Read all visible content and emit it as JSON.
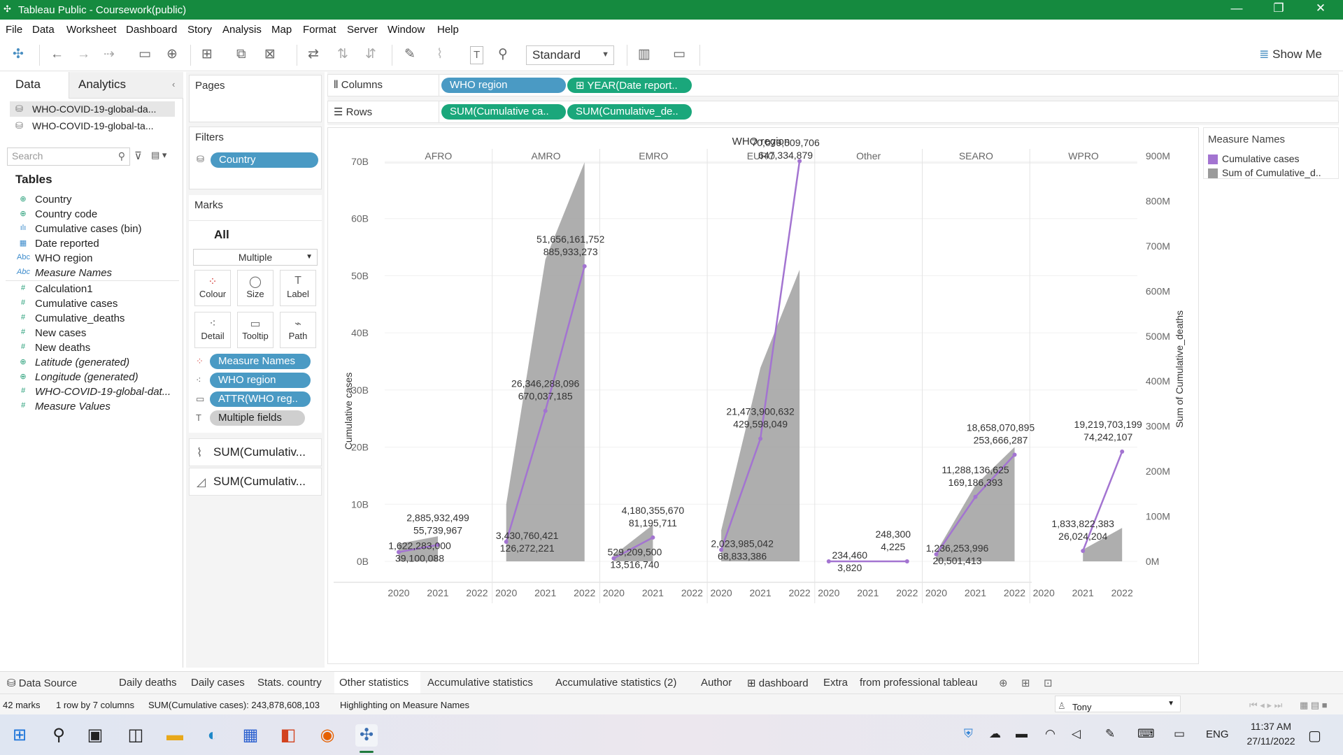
{
  "window": {
    "title": "Tableau Public - Coursework(public)",
    "min": "—",
    "max": "❐",
    "close": "✕"
  },
  "menu": [
    "File",
    "Data",
    "Worksheet",
    "Dashboard",
    "Story",
    "Analysis",
    "Map",
    "Format",
    "Server",
    "Window",
    "Help"
  ],
  "toolbar": {
    "fit": "Standard",
    "show_me": "Show Me"
  },
  "data_pane": {
    "tabs": [
      "Data",
      "Analytics"
    ],
    "sources": [
      "WHO-COVID-19-global-da...",
      "WHO-COVID-19-global-ta..."
    ],
    "search_placeholder": "Search",
    "tables_label": "Tables",
    "fields": [
      {
        "name": "Country",
        "icon": "globe-icon"
      },
      {
        "name": "Country code",
        "icon": "globe-icon"
      },
      {
        "name": "Cumulative cases (bin)",
        "icon": "bin-icon"
      },
      {
        "name": "Date reported",
        "icon": "calendar-icon"
      },
      {
        "name": "WHO region",
        "icon": "abc-icon"
      },
      {
        "name": "Measure Names",
        "icon": "abc-icon"
      },
      {
        "name": "Calculation1",
        "icon": "hash-icon"
      },
      {
        "name": "Cumulative cases",
        "icon": "hash-icon"
      },
      {
        "name": "Cumulative_deaths",
        "icon": "hash-icon"
      },
      {
        "name": "New cases",
        "icon": "hash-icon"
      },
      {
        "name": "New deaths",
        "icon": "hash-icon"
      },
      {
        "name": "Latitude (generated)",
        "icon": "globe-icon"
      },
      {
        "name": "Longitude (generated)",
        "icon": "globe-icon"
      },
      {
        "name": "WHO-COVID-19-global-dat...",
        "icon": "hash-icon"
      },
      {
        "name": "Measure Values",
        "icon": "hash-icon"
      }
    ]
  },
  "shelves": {
    "pages_label": "Pages",
    "filters_label": "Filters",
    "filter_pill": "Country",
    "marks_label": "Marks",
    "marks_all": "All",
    "mark_type": "Multiple",
    "mark_buttons": [
      "Colour",
      "Size",
      "Label",
      "Detail",
      "Tooltip",
      "Path"
    ],
    "mark_pills": [
      "Measure Names",
      "WHO region",
      "ATTR(WHO reg..",
      "Multiple fields"
    ],
    "mark_sums": [
      "SUM(Cumulativ...",
      "SUM(Cumulativ..."
    ],
    "columns_label": "Columns",
    "rows_label": "Rows",
    "columns_pills": [
      "WHO region",
      "⊞ YEAR(Date report.."
    ],
    "rows_pills": [
      "SUM(Cumulative ca..",
      "SUM(Cumulative_de.."
    ]
  },
  "legend": {
    "title": "Measure Names",
    "items": [
      {
        "label": "Cumulative cases",
        "color": "#a374d1"
      },
      {
        "label": "Sum of Cumulative_d..",
        "color": "#9a9a9a"
      }
    ]
  },
  "sheet_tabs": [
    "Data Source",
    "Daily deaths",
    "Daily cases",
    "Stats. country",
    "Other statistics",
    "Accumulative statistics",
    "Accumulative statistics (2)",
    "Author",
    "dashboard",
    "Extra",
    "from professional tableau"
  ],
  "status": {
    "marks": "42 marks",
    "dims": "1 row by 7 columns",
    "sum": "SUM(Cumulative cases): 243,878,608,103",
    "highlight": "Highlighting on Measure Names",
    "user": "Tony"
  },
  "taskbar": {
    "lang": "ENG",
    "time": "11:37 AM",
    "date": "27/11/2022"
  },
  "chart_data": {
    "type": "line",
    "title": "WHO region",
    "xlabel": "",
    "ylabel": "Cumulative cases",
    "y2label": "Sum of Cumulative_deaths",
    "ylim": [
      0,
      70000000000
    ],
    "y2lim": [
      0,
      900000000
    ],
    "yticks": [
      "0B",
      "10B",
      "20B",
      "30B",
      "40B",
      "50B",
      "60B",
      "70B"
    ],
    "y2ticks": [
      "0M",
      "100M",
      "200M",
      "300M",
      "400M",
      "500M",
      "600M",
      "700M",
      "800M",
      "900M"
    ],
    "years": [
      "2020",
      "2021",
      "2022"
    ],
    "regions": [
      {
        "name": "AFRO",
        "cases": [
          1622283000,
          2885932499,
          null
        ],
        "deaths": [
          39100088,
          55739967,
          null
        ],
        "case_labels": [
          "1,622,283,000",
          "2,885,932,499"
        ],
        "death_labels": [
          "39,100,088",
          "55,739,967"
        ]
      },
      {
        "name": "AMRO",
        "cases": [
          3430760421,
          26346288096,
          51656161752
        ],
        "deaths": [
          126272221,
          670037185,
          885933273
        ],
        "case_labels": [
          "3,430,760,421",
          "26,346,288,096",
          "51,656,161,752"
        ],
        "death_labels": [
          "126,272,221",
          "670,037,185",
          "885,933,273"
        ]
      },
      {
        "name": "EMRO",
        "cases": [
          529209500,
          4180355670,
          null
        ],
        "deaths": [
          13516740,
          81195711,
          null
        ],
        "case_labels": [
          "529,209,500",
          "4,180,355,670"
        ],
        "death_labels": [
          "13,516,740",
          "81,195,711"
        ]
      },
      {
        "name": "EURO",
        "cases": [
          2023985042,
          21473900632,
          70079509706
        ],
        "deaths": [
          68833386,
          429598049,
          647334879
        ],
        "case_labels": [
          "2,023,985,042",
          "21,473,900,632",
          "70,079,509,706"
        ],
        "death_labels": [
          "68,833,386",
          "429,598,049",
          "647,334,879"
        ]
      },
      {
        "name": "Other",
        "cases": [
          234460,
          null,
          248300
        ],
        "deaths": [
          3820,
          null,
          4225
        ],
        "case_labels": [
          "234,460",
          "248,300"
        ],
        "death_labels": [
          "3,820",
          "4,225"
        ]
      },
      {
        "name": "SEARO",
        "cases": [
          1236253996,
          11288136625,
          18658070895
        ],
        "deaths": [
          20501413,
          169186393,
          253666287
        ],
        "case_labels": [
          "1,236,253,996",
          "11,288,136,625",
          "18,658,070,895"
        ],
        "death_labels": [
          "20,501,413",
          "169,186,393",
          "253,666,287"
        ]
      },
      {
        "name": "WPRO",
        "cases": [
          null,
          1833822383,
          19219703199
        ],
        "deaths": [
          null,
          26024204,
          74242107
        ],
        "case_labels": [
          "1,833,822,383",
          "19,219,703,199"
        ],
        "death_labels": [
          "26,024,204",
          "74,242,107"
        ]
      }
    ],
    "series": [
      {
        "name": "Cumulative cases",
        "color": "#a374d1"
      },
      {
        "name": "Sum of Cumulative_d..",
        "color": "#9a9a9a"
      }
    ]
  }
}
